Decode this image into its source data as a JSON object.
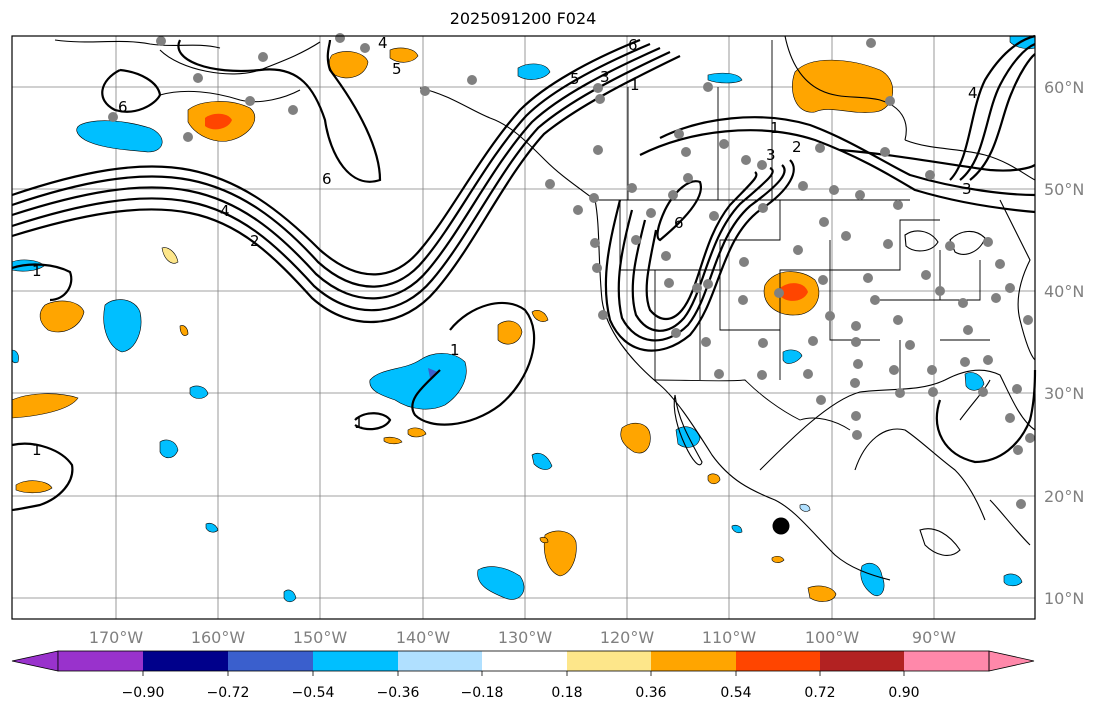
{
  "map": {
    "title": "2025091200 F024",
    "lat_labels": [
      "60°N",
      "50°N",
      "40°N",
      "30°N",
      "20°N",
      "10°N"
    ],
    "lon_labels": [
      "170°W",
      "160°W",
      "150°W",
      "140°W",
      "130°W",
      "120°W",
      "110°W",
      "100°W",
      "90°W"
    ],
    "contour_labels": [
      "1",
      "2",
      "3",
      "4",
      "5",
      "6"
    ]
  },
  "colorbar": {
    "ticks": [
      "−0.90",
      "−0.72",
      "−0.54",
      "−0.36",
      "−0.18",
      "0.18",
      "0.36",
      "0.54",
      "0.72",
      "0.90"
    ],
    "colors": [
      "#9932cc",
      "#00008b",
      "#3a5fcd",
      "#00bfff",
      "#b0e0ff",
      "#ffffff",
      "#fde68a",
      "#ffa500",
      "#ff4500",
      "#b22222",
      "#ff88aa"
    ]
  },
  "colors": {
    "positive_low": "#fde68a",
    "positive_mid": "#ffa500",
    "positive_high": "#ff4500",
    "negative_mid": "#00bfff",
    "negative_low": "#b0e0ff",
    "station_dot": "#808080",
    "storm_marker": "#000000"
  }
}
